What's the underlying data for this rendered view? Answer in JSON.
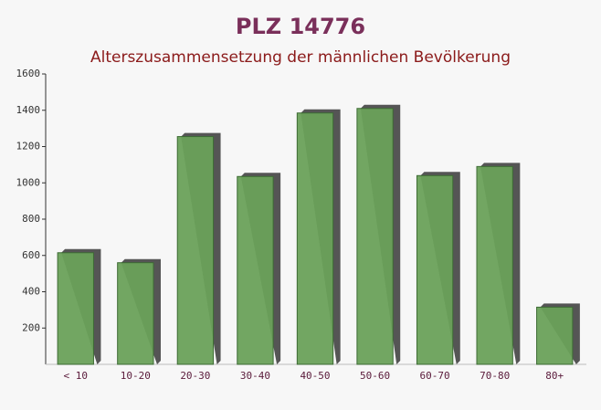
{
  "chart_data": {
    "type": "bar",
    "title": "PLZ 14776",
    "subtitle": "Alterszusammensetzung der männlichen Bevölkerung",
    "categories": [
      "< 10",
      "10-20",
      "20-30",
      "30-40",
      "40-50",
      "50-60",
      "60-70",
      "70-80",
      "80+"
    ],
    "values": [
      615,
      560,
      1255,
      1035,
      1385,
      1410,
      1040,
      1090,
      315
    ],
    "color": "#6aa15a",
    "ylim": [
      0,
      1600
    ],
    "yticks": [
      200,
      400,
      600,
      800,
      1000,
      1200,
      1400,
      1600
    ]
  }
}
